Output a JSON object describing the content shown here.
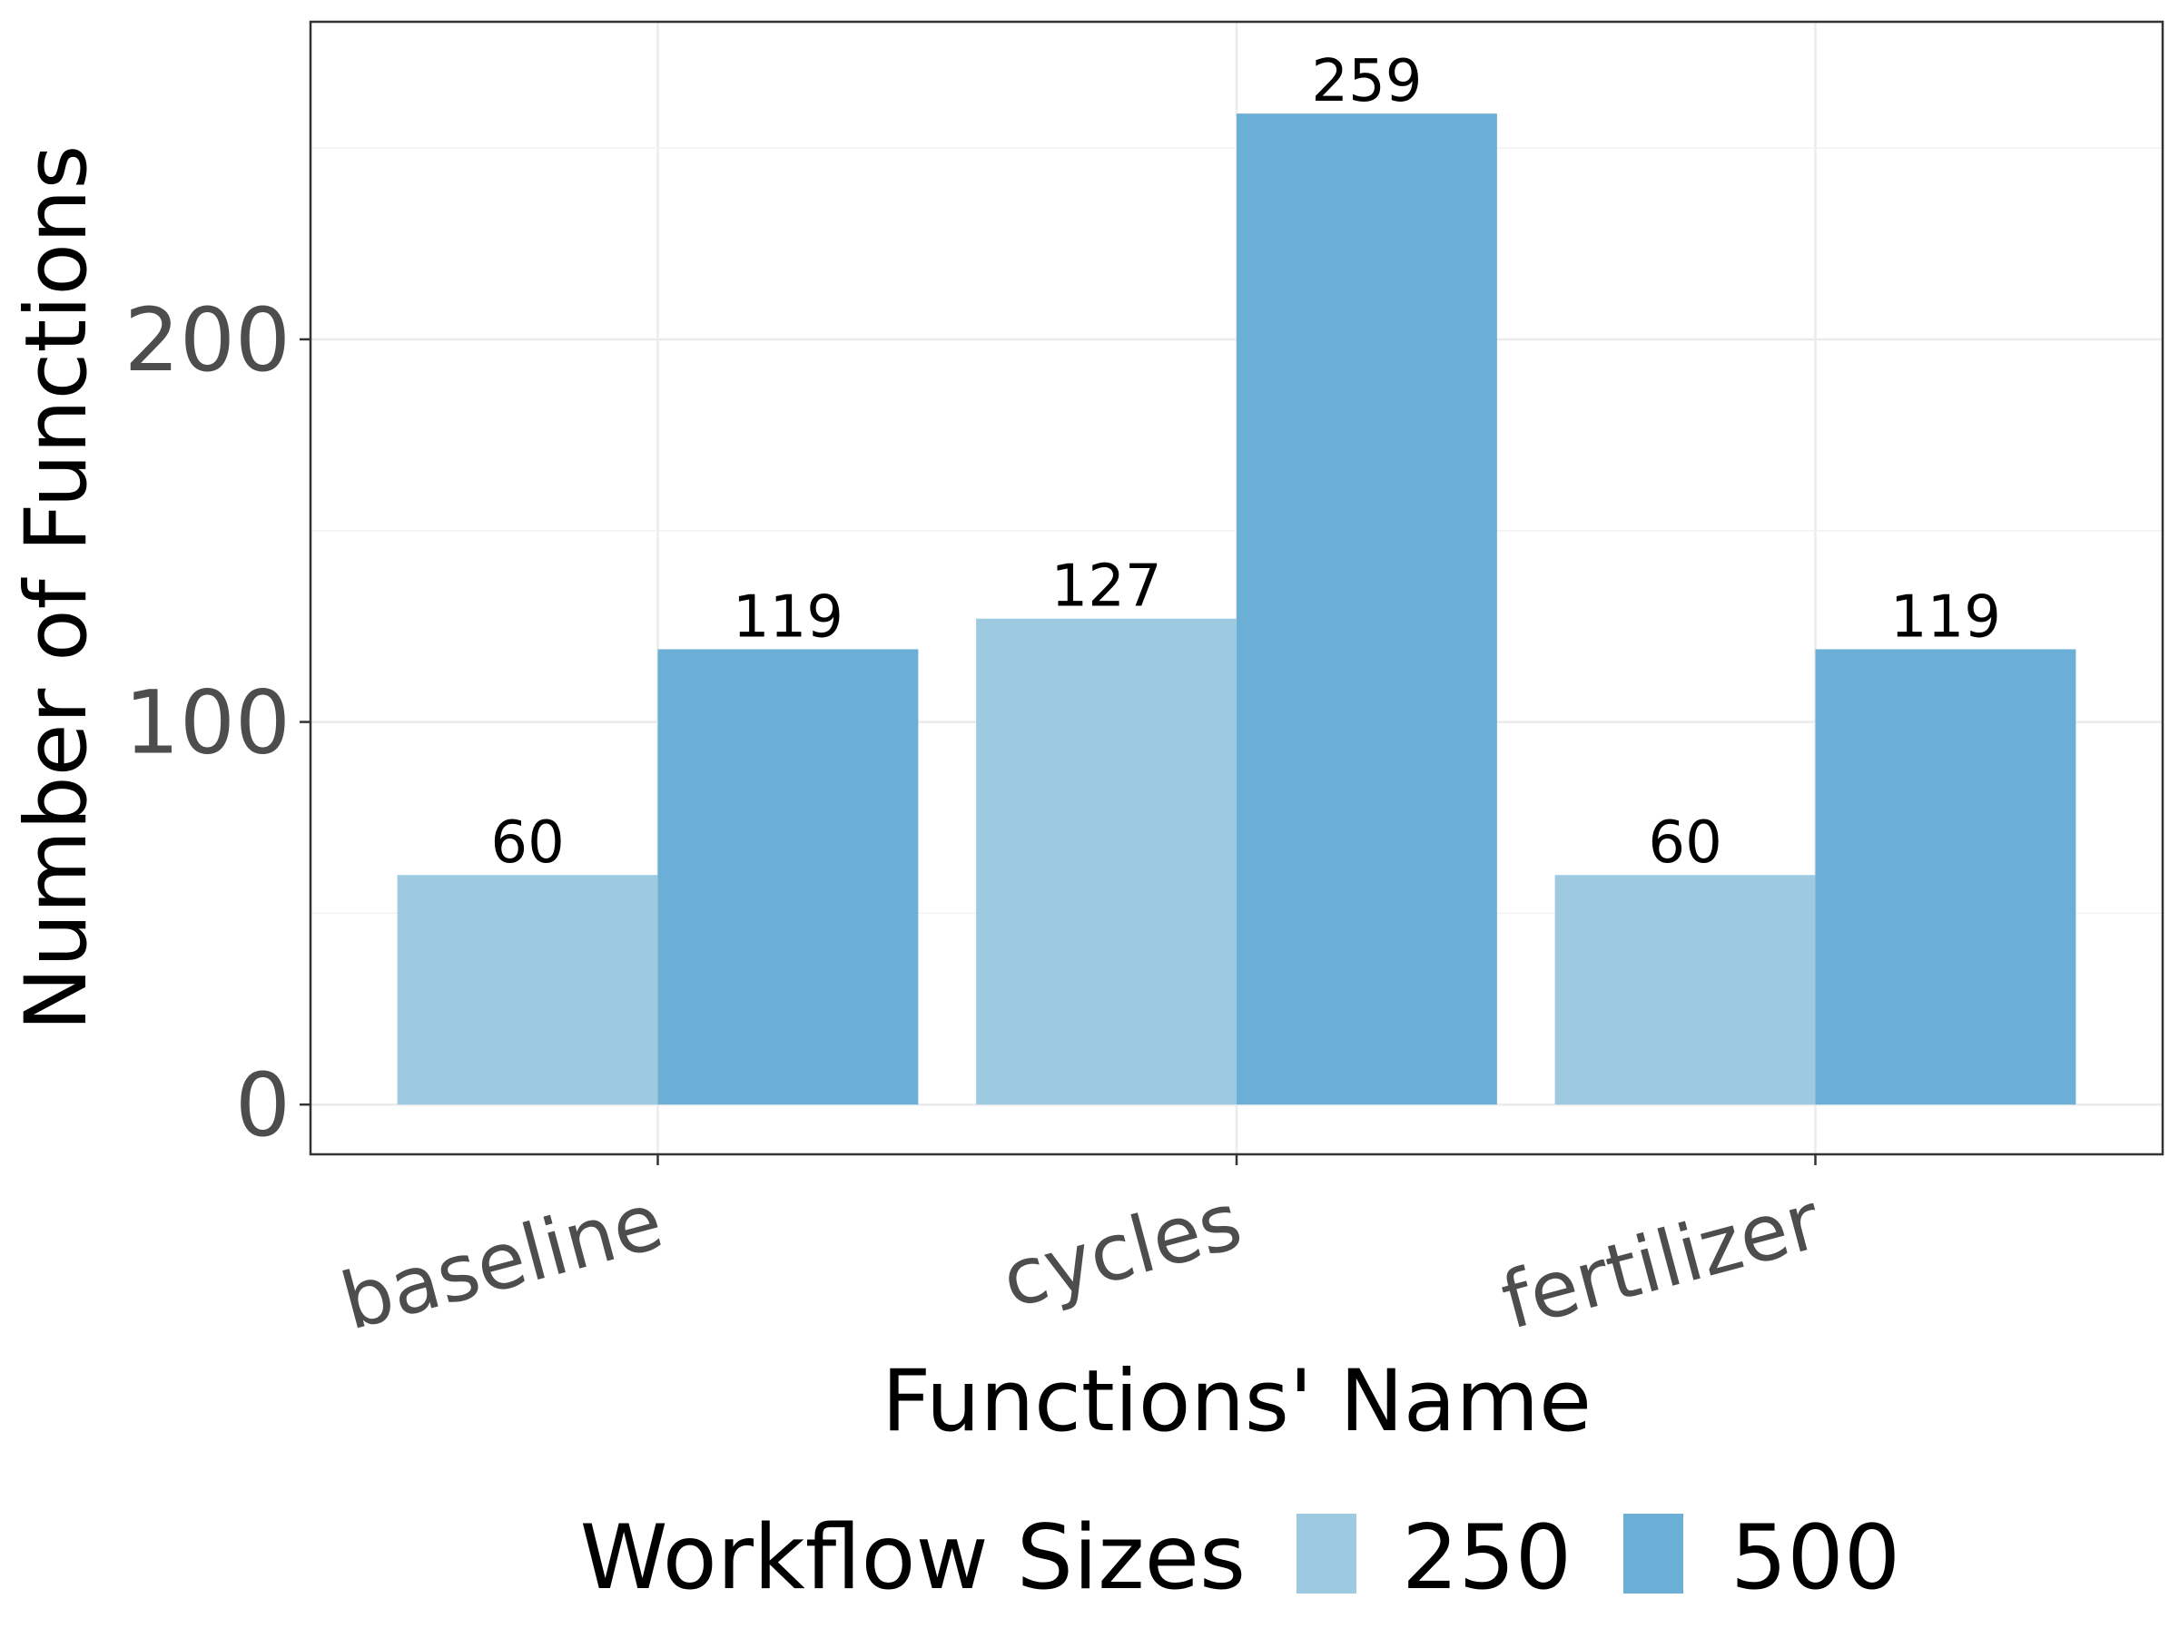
{
  "chart_data": {
    "type": "bar",
    "categories": [
      "baseline",
      "cycles",
      "fertilizer"
    ],
    "series": [
      {
        "name": "250",
        "values": [
          60,
          127,
          60
        ],
        "color": "#9ecae1"
      },
      {
        "name": "500",
        "values": [
          119,
          259,
          119
        ],
        "color": "#6baed6"
      }
    ],
    "xlabel": "Functions' Name",
    "ylabel": "Number of Functions",
    "ylim": [
      -13,
      283
    ],
    "yticks": [
      0,
      100,
      200
    ],
    "grid": true,
    "legend": {
      "title": "Workflow Sizes",
      "position": "bottom"
    },
    "data_labels": true,
    "x_tick_rotation_deg": 15
  }
}
